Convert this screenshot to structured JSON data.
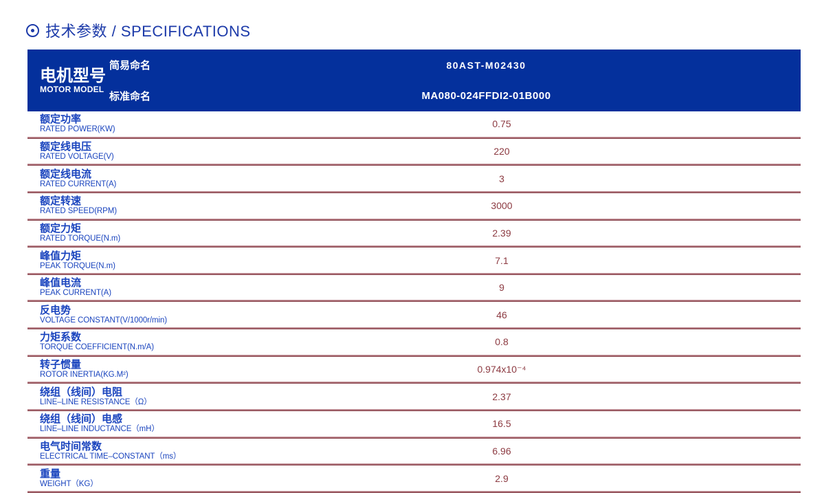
{
  "page": {
    "title": "技术参数 / SPECIFICATIONS"
  },
  "colors": {
    "header_bg": "#04309c",
    "title_blue": "#1c3aa9",
    "label_blue": "#1a44be",
    "value_maroon": "#8c3a41",
    "separator_top": "#c99ba1",
    "separator_bottom": "#7f3b43"
  },
  "table": {
    "model_header": {
      "title_zh": "电机型号",
      "title_en": "MOTOR MODEL",
      "simple_name_label": "简易命名",
      "simple_name_value": "80AST-M02430",
      "standard_name_label": "标准命名",
      "standard_name_value": "MA080-024FFDI2-01B000"
    },
    "spec_rows": [
      {
        "label_zh": "额定功率",
        "label_en": "RATED POWER(KW)",
        "value": "0.75"
      },
      {
        "label_zh": "额定线电压",
        "label_en": "RATED VOLTAGE(V)",
        "value": "220"
      },
      {
        "label_zh": "额定线电流",
        "label_en": "RATED CURRENT(A)",
        "value": "3"
      },
      {
        "label_zh": "额定转速",
        "label_en": "RATED SPEED(RPM)",
        "value": "3000"
      },
      {
        "label_zh": "额定力矩",
        "label_en": "RATED TORQUE(N.m)",
        "value": "2.39"
      },
      {
        "label_zh": "峰值力矩",
        "label_en": "PEAK TORQUE(N.m)",
        "value": "7.1"
      },
      {
        "label_zh": "峰值电流",
        "label_en": "PEAK CURRENT(A)",
        "value": "9"
      },
      {
        "label_zh": "反电势",
        "label_en": "VOLTAGE CONSTANT(V/1000r/min)",
        "value": "46"
      },
      {
        "label_zh": "力矩系数",
        "label_en": "TORQUE COEFFICIENT(N.m/A)",
        "value": "0.8"
      },
      {
        "label_zh": "转子惯量",
        "label_en": "ROTOR INERTIA(KG.M²)",
        "value": "0.974x10⁻⁴"
      },
      {
        "label_zh": "绕组（线间）电阻",
        "label_en": "LINE–LINE RESISTANCE（Ω）",
        "value": "2.37"
      },
      {
        "label_zh": "绕组（线间）电感",
        "label_en": "LINE–LINE INDUCTANCE（mH）",
        "value": "16.5"
      },
      {
        "label_zh": "电气时间常数",
        "label_en": "ELECTRICAL TIME–CONSTANT（ms）",
        "value": "6.96"
      },
      {
        "label_zh": "重量",
        "label_en": "WEIGHT（KG）",
        "value": "2.9"
      }
    ]
  }
}
